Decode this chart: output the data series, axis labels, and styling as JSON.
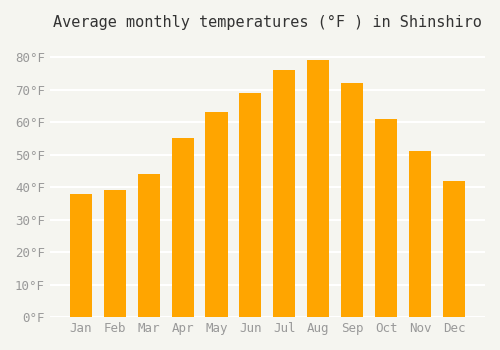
{
  "title": "Average monthly temperatures (°F ) in Shinshiro",
  "months": [
    "Jan",
    "Feb",
    "Mar",
    "Apr",
    "May",
    "Jun",
    "Jul",
    "Aug",
    "Sep",
    "Oct",
    "Nov",
    "Dec"
  ],
  "values": [
    38,
    39,
    44,
    55,
    63,
    69,
    76,
    79,
    72,
    61,
    51,
    42
  ],
  "bar_color_top": "#FFA500",
  "bar_color_bottom": "#FFD080",
  "ylim": [
    0,
    85
  ],
  "yticks": [
    0,
    10,
    20,
    30,
    40,
    50,
    60,
    70,
    80
  ],
  "ytick_labels": [
    "0°F",
    "10°F",
    "20°F",
    "30°F",
    "40°F",
    "50°F",
    "60°F",
    "70°F",
    "80°F"
  ],
  "background_color": "#F5F5F0",
  "grid_color": "#FFFFFF",
  "title_fontsize": 11,
  "tick_fontsize": 9,
  "bar_edge_color": "none"
}
